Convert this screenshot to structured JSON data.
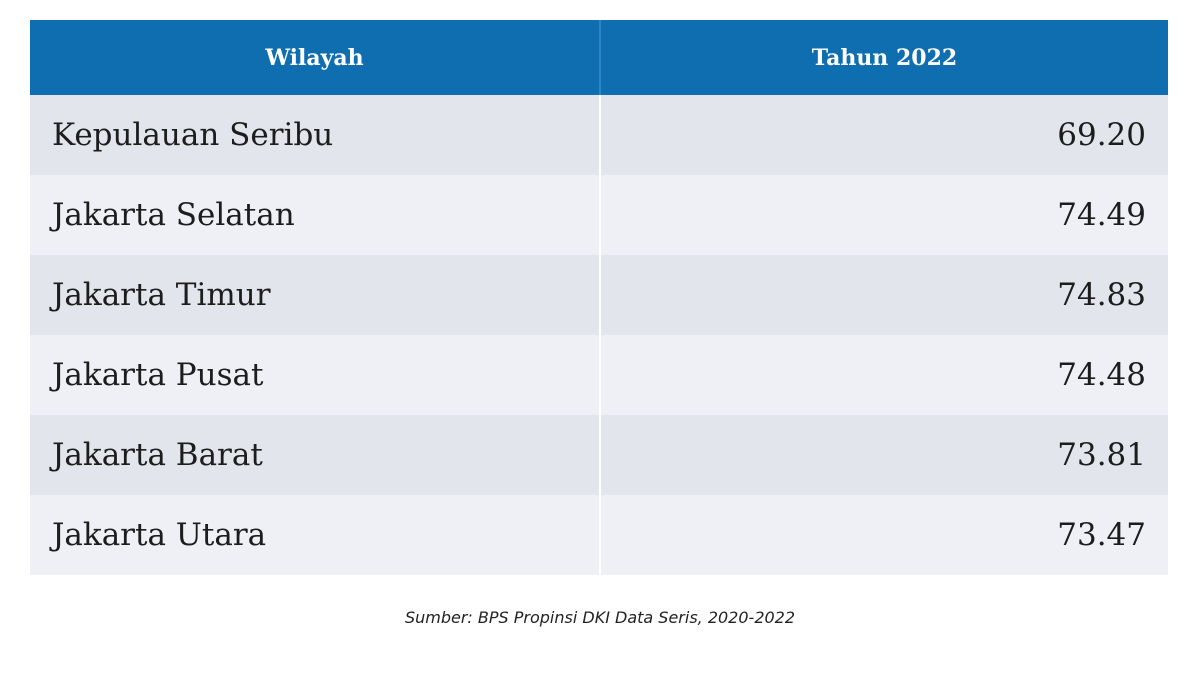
{
  "table": {
    "header": [
      "Wilayah",
      "Tahun 2022"
    ],
    "rows": [
      [
        "Kepulauan Seribu",
        "69.20"
      ],
      [
        "Jakarta Selatan",
        "74.49"
      ],
      [
        "Jakarta Timur",
        "74.83"
      ],
      [
        "Jakarta Pusat",
        "74.48"
      ],
      [
        "Jakarta Barat",
        "73.81"
      ],
      [
        "Jakarta Utara",
        "73.47"
      ]
    ]
  },
  "source": "Sumber: BPS Propinsi DKI Data Seris, 2020-2022"
}
